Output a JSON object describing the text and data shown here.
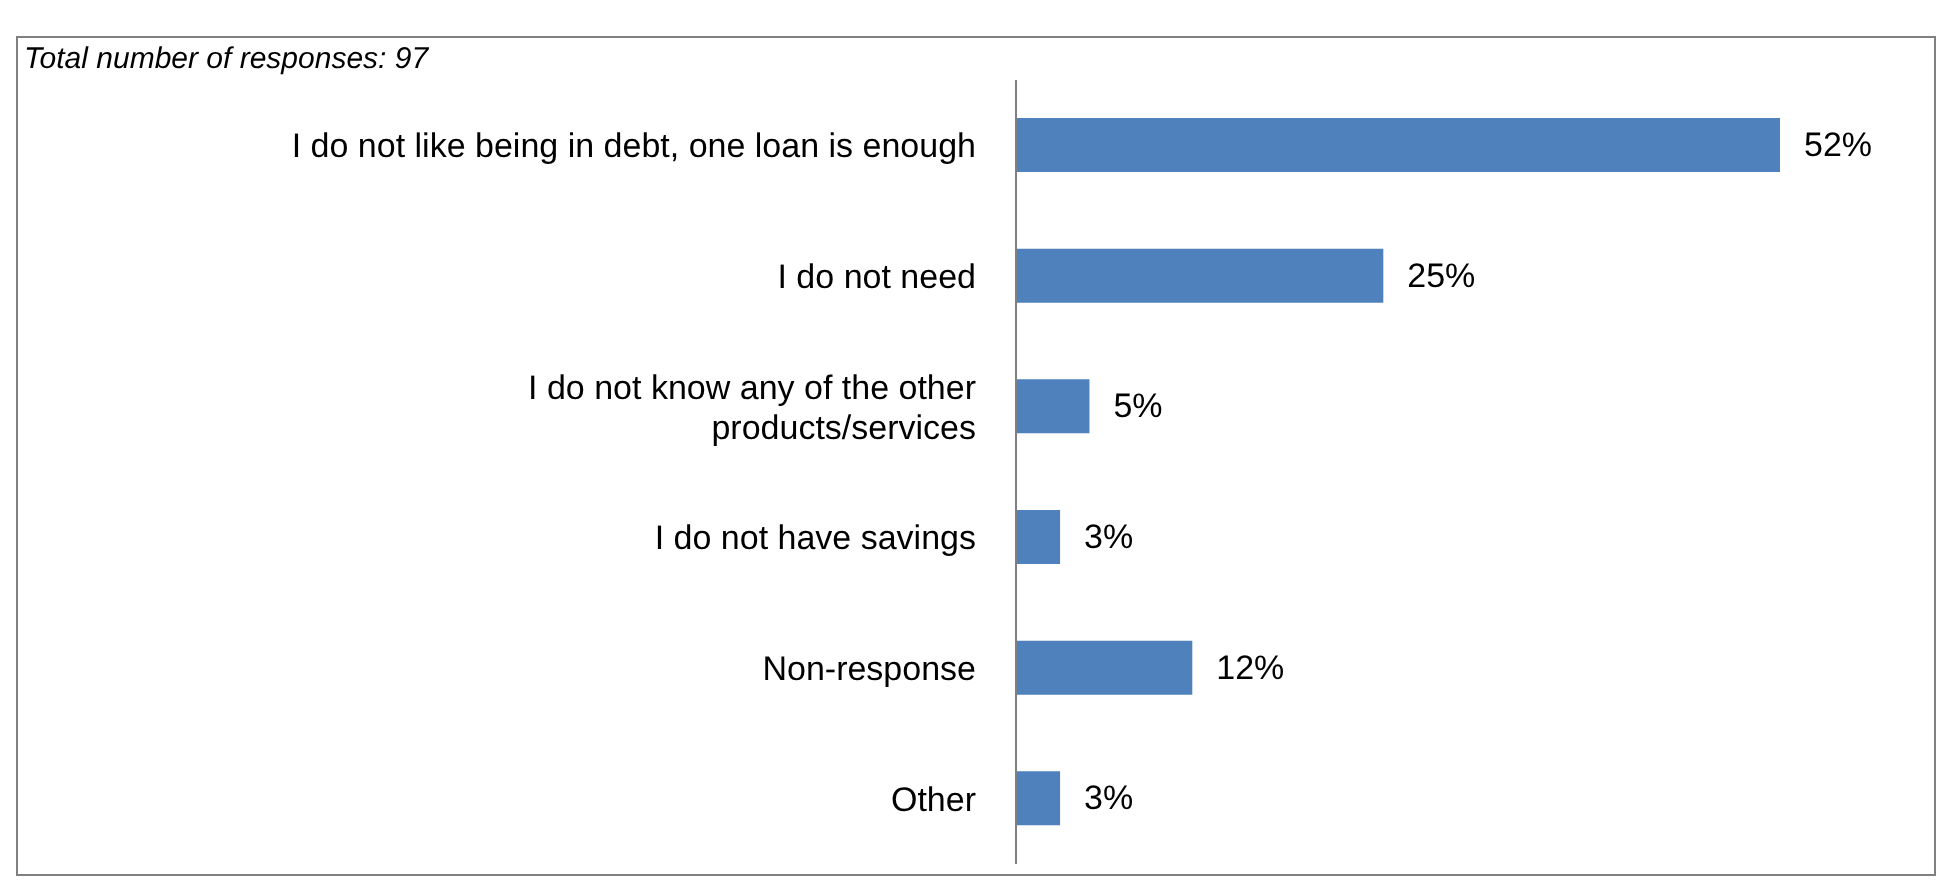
{
  "chart_data": {
    "type": "bar",
    "orientation": "horizontal",
    "categories": [
      "I do not like being in debt, one loan is enough",
      "I do not need",
      "I do not know any of the other products/services",
      "I do not have savings",
      "Non-response",
      "Other"
    ],
    "values": [
      52,
      25,
      5,
      3,
      12,
      3
    ],
    "value_labels": [
      "52%",
      "25%",
      "5%",
      "3%",
      "12%",
      "3%"
    ],
    "color": "#4f81bd",
    "annotations": [
      "Total number of responses: 97"
    ]
  }
}
